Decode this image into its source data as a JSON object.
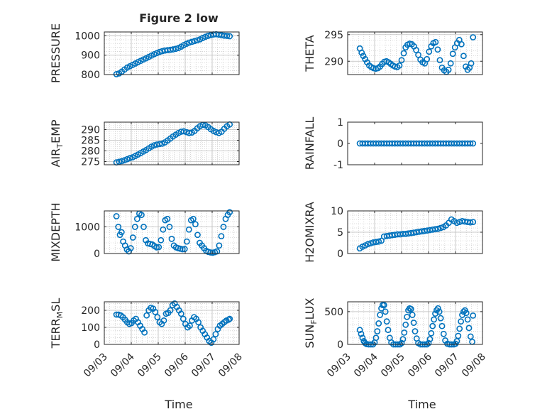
{
  "figure": {
    "title": "Figure 2 low"
  },
  "colors": {
    "marker": "#0072bd",
    "grid": "#bdbdbd",
    "axis": "#262626"
  },
  "x_tick_labels": [
    "09/03",
    "09/04",
    "09/05",
    "09/06",
    "09/07",
    "09/08"
  ],
  "chart_data": [
    {
      "type": "scatter",
      "col": 0,
      "row": 0,
      "ylabel": "PRESSURE",
      "ylabel_sub": null,
      "xlim": [
        3.0,
        8.0
      ],
      "ylim": [
        800,
        1020
      ],
      "yticks": [
        800,
        900,
        1000
      ],
      "grid": true,
      "x": [
        3.45,
        3.55,
        3.65,
        3.75,
        3.85,
        3.95,
        4.05,
        4.15,
        4.25,
        4.35,
        4.45,
        4.55,
        4.65,
        4.75,
        4.85,
        4.95,
        5.05,
        5.15,
        5.25,
        5.35,
        5.45,
        5.55,
        5.65,
        5.75,
        5.85,
        5.95,
        6.05,
        6.15,
        6.25,
        6.35,
        6.45,
        6.55,
        6.65,
        6.75,
        6.85,
        6.95,
        7.05,
        7.15,
        7.25,
        7.35,
        7.45,
        7.55,
        7.65
      ],
      "y": [
        802,
        806,
        815,
        826,
        836,
        843,
        850,
        857,
        864,
        871,
        878,
        884,
        891,
        898,
        905,
        911,
        917,
        921,
        924,
        926,
        928,
        930,
        933,
        937,
        944,
        952,
        959,
        965,
        969,
        973,
        977,
        982,
        989,
        995,
        1000,
        1004,
        1007,
        1008,
        1006,
        1003,
        1001,
        1000,
        998
      ]
    },
    {
      "type": "scatter",
      "col": 1,
      "row": 0,
      "ylabel": "THETA",
      "ylabel_sub": null,
      "xlim": [
        3.0,
        8.0
      ],
      "ylim": [
        287.5,
        295.5
      ],
      "yticks": [
        290,
        295
      ],
      "grid": true,
      "x": [
        3.45,
        3.52,
        3.58,
        3.65,
        3.72,
        3.8,
        3.88,
        3.96,
        4.04,
        4.12,
        4.2,
        4.28,
        4.36,
        4.44,
        4.52,
        4.6,
        4.68,
        4.76,
        4.84,
        4.92,
        5.0,
        5.08,
        5.15,
        5.22,
        5.3,
        5.38,
        5.46,
        5.54,
        5.62,
        5.7,
        5.78,
        5.86,
        5.94,
        6.02,
        6.1,
        6.18,
        6.26,
        6.34,
        6.42,
        6.5,
        6.58,
        6.66,
        6.74,
        6.82,
        6.9,
        6.98,
        7.06,
        7.14,
        7.22,
        7.3,
        7.38,
        7.45,
        7.52,
        7.58,
        7.65
      ],
      "y": [
        292.4,
        291.6,
        291.0,
        290.4,
        289.8,
        289.2,
        288.9,
        288.7,
        288.6,
        288.7,
        289.0,
        289.5,
        289.9,
        290.0,
        289.8,
        289.5,
        289.2,
        289.0,
        288.9,
        289.2,
        290.2,
        291.5,
        292.6,
        293.1,
        293.3,
        293.2,
        292.8,
        292.1,
        291.2,
        290.3,
        289.8,
        289.6,
        290.4,
        291.8,
        292.8,
        293.4,
        293.6,
        292.2,
        290.2,
        288.8,
        288.3,
        288.0,
        288.4,
        289.6,
        291.4,
        292.6,
        293.4,
        294.0,
        293.2,
        291.0,
        289.0,
        288.4,
        288.8,
        289.6,
        294.5
      ]
    },
    {
      "type": "scatter",
      "col": 0,
      "row": 1,
      "ylabel": "AIR",
      "ylabel_sub": "T",
      "ylabel_tail": "EMP",
      "xlim": [
        3.0,
        8.0
      ],
      "ylim": [
        273.5,
        293.5
      ],
      "yticks": [
        275,
        280,
        285,
        290
      ],
      "grid": true,
      "x": [
        3.45,
        3.55,
        3.65,
        3.75,
        3.85,
        3.95,
        4.05,
        4.15,
        4.25,
        4.35,
        4.45,
        4.55,
        4.65,
        4.75,
        4.85,
        4.95,
        5.05,
        5.15,
        5.25,
        5.35,
        5.45,
        5.55,
        5.65,
        5.75,
        5.85,
        5.95,
        6.05,
        6.15,
        6.25,
        6.35,
        6.45,
        6.55,
        6.65,
        6.75,
        6.85,
        6.95,
        7.05,
        7.15,
        7.25,
        7.35,
        7.45,
        7.55,
        7.65
      ],
      "y": [
        274.6,
        274.9,
        275.2,
        275.6,
        276.1,
        276.6,
        277.0,
        277.6,
        278.3,
        279.0,
        279.7,
        280.4,
        281.2,
        282.0,
        282.6,
        283.0,
        283.2,
        283.4,
        284.0,
        284.9,
        285.8,
        286.8,
        287.6,
        288.4,
        289.0,
        289.2,
        288.8,
        288.4,
        288.6,
        289.4,
        290.6,
        291.6,
        292.2,
        292.0,
        291.2,
        290.2,
        289.4,
        288.8,
        288.4,
        289.0,
        290.4,
        291.6,
        292.4
      ]
    },
    {
      "type": "scatter",
      "col": 1,
      "row": 1,
      "ylabel": "RAINFALL",
      "ylabel_sub": null,
      "xlim": [
        3.0,
        8.0
      ],
      "ylim": [
        -1,
        1
      ],
      "yticks": [
        -1,
        0,
        1
      ],
      "grid": false,
      "x": [
        3.45,
        3.55,
        3.65,
        3.75,
        3.85,
        3.95,
        4.05,
        4.15,
        4.25,
        4.35,
        4.45,
        4.55,
        4.65,
        4.75,
        4.85,
        4.95,
        5.05,
        5.15,
        5.25,
        5.35,
        5.45,
        5.55,
        5.65,
        5.75,
        5.85,
        5.95,
        6.05,
        6.15,
        6.25,
        6.35,
        6.45,
        6.55,
        6.65,
        6.75,
        6.85,
        6.95,
        7.05,
        7.15,
        7.25,
        7.35,
        7.45,
        7.55,
        7.65
      ],
      "y": [
        0,
        0,
        0,
        0,
        0,
        0,
        0,
        0,
        0,
        0,
        0,
        0,
        0,
        0,
        0,
        0,
        0,
        0,
        0,
        0,
        0,
        0,
        0,
        0,
        0,
        0,
        0,
        0,
        0,
        0,
        0,
        0,
        0,
        0,
        0,
        0,
        0,
        0,
        0,
        0,
        0,
        0,
        0
      ]
    },
    {
      "type": "scatter",
      "col": 0,
      "row": 2,
      "ylabel": "MIXDEPTH",
      "ylabel_sub": null,
      "xlim": [
        3.0,
        8.0
      ],
      "ylim": [
        0,
        1600
      ],
      "yticks": [
        0,
        1000
      ],
      "grid": true,
      "x": [
        3.45,
        3.52,
        3.58,
        3.64,
        3.7,
        3.77,
        3.84,
        3.91,
        3.98,
        4.06,
        4.14,
        4.22,
        4.3,
        4.38,
        4.46,
        4.54,
        4.62,
        4.7,
        4.78,
        4.86,
        4.94,
        5.02,
        5.1,
        5.18,
        5.26,
        5.34,
        5.42,
        5.5,
        5.58,
        5.66,
        5.74,
        5.82,
        5.9,
        5.98,
        6.06,
        6.14,
        6.22,
        6.3,
        6.38,
        6.46,
        6.54,
        6.62,
        6.7,
        6.78,
        6.86,
        6.94,
        7.02,
        7.1,
        7.18,
        7.26,
        7.34,
        7.42,
        7.5,
        7.58,
        7.65
      ],
      "y": [
        1400,
        1000,
        700,
        800,
        450,
        300,
        150,
        80,
        200,
        600,
        1000,
        1300,
        1500,
        1450,
        1000,
        500,
        380,
        360,
        340,
        280,
        230,
        240,
        500,
        900,
        1250,
        1300,
        1000,
        550,
        300,
        230,
        200,
        180,
        160,
        170,
        450,
        900,
        1250,
        1300,
        1100,
        700,
        400,
        300,
        200,
        100,
        60,
        40,
        30,
        50,
        80,
        300,
        650,
        1000,
        1300,
        1450,
        1550
      ]
    },
    {
      "type": "scatter",
      "col": 1,
      "row": 2,
      "ylabel": "H2OMIXRA",
      "ylabel_sub": null,
      "xlim": [
        3.0,
        8.0
      ],
      "ylim": [
        0,
        10
      ],
      "yticks": [
        0,
        5,
        10
      ],
      "grid": true,
      "x": [
        3.45,
        3.55,
        3.65,
        3.75,
        3.85,
        3.95,
        4.05,
        4.15,
        4.25,
        4.35,
        4.45,
        4.55,
        4.65,
        4.75,
        4.85,
        4.95,
        5.05,
        5.15,
        5.25,
        5.35,
        5.45,
        5.55,
        5.65,
        5.75,
        5.85,
        5.95,
        6.05,
        6.15,
        6.25,
        6.35,
        6.45,
        6.55,
        6.65,
        6.75,
        6.85,
        6.95,
        7.05,
        7.15,
        7.25,
        7.35,
        7.45,
        7.55,
        7.65
      ],
      "y": [
        1.2,
        1.6,
        1.9,
        2.2,
        2.4,
        2.6,
        2.7,
        2.8,
        3.0,
        4.0,
        4.1,
        4.2,
        4.3,
        4.4,
        4.5,
        4.5,
        4.6,
        4.6,
        4.7,
        4.8,
        4.9,
        5.0,
        5.1,
        5.2,
        5.3,
        5.4,
        5.5,
        5.6,
        5.7,
        5.8,
        6.0,
        6.2,
        6.6,
        7.2,
        8.0,
        7.6,
        7.2,
        7.4,
        7.6,
        7.5,
        7.4,
        7.3,
        7.4
      ]
    },
    {
      "type": "scatter",
      "col": 0,
      "row": 3,
      "ylabel": "TERR",
      "ylabel_sub": "M",
      "ylabel_tail": "SL",
      "xlim": [
        3.0,
        8.0
      ],
      "ylim": [
        0,
        250
      ],
      "yticks": [
        0,
        100,
        200
      ],
      "grid": true,
      "x": [
        3.45,
        3.53,
        3.61,
        3.69,
        3.77,
        3.85,
        3.93,
        4.01,
        4.09,
        4.17,
        4.25,
        4.33,
        4.41,
        4.49,
        4.57,
        4.65,
        4.73,
        4.81,
        4.89,
        4.97,
        5.05,
        5.13,
        5.21,
        5.29,
        5.37,
        5.45,
        5.53,
        5.61,
        5.69,
        5.77,
        5.85,
        5.93,
        6.01,
        6.09,
        6.17,
        6.25,
        6.33,
        6.41,
        6.49,
        6.57,
        6.65,
        6.73,
        6.81,
        6.89,
        6.97,
        7.05,
        7.13,
        7.21,
        7.29,
        7.37,
        7.45,
        7.53,
        7.61,
        7.65
      ],
      "y": [
        175,
        175,
        170,
        160,
        145,
        130,
        120,
        125,
        140,
        150,
        130,
        110,
        90,
        70,
        170,
        200,
        215,
        210,
        190,
        160,
        130,
        120,
        140,
        180,
        185,
        200,
        230,
        240,
        220,
        200,
        180,
        150,
        120,
        100,
        110,
        140,
        160,
        150,
        130,
        100,
        80,
        60,
        40,
        20,
        10,
        30,
        60,
        90,
        110,
        120,
        130,
        140,
        145,
        150
      ]
    },
    {
      "type": "scatter",
      "col": 1,
      "row": 3,
      "ylabel": "SUN",
      "ylabel_sub": "F",
      "ylabel_tail": "LUX",
      "xlim": [
        3.0,
        8.0
      ],
      "ylim": [
        0,
        650
      ],
      "yticks": [
        0,
        500
      ],
      "grid": true,
      "x": [
        3.45,
        3.5,
        3.55,
        3.6,
        3.65,
        3.7,
        3.78,
        3.86,
        3.94,
        4.0,
        4.05,
        4.1,
        4.15,
        4.2,
        4.25,
        4.3,
        4.35,
        4.4,
        4.45,
        4.5,
        4.56,
        4.62,
        4.7,
        4.78,
        4.86,
        4.94,
        5.0,
        5.05,
        5.1,
        5.15,
        5.2,
        5.25,
        5.3,
        5.35,
        5.4,
        5.45,
        5.5,
        5.56,
        5.62,
        5.7,
        5.78,
        5.86,
        5.94,
        6.0,
        6.05,
        6.1,
        6.15,
        6.2,
        6.25,
        6.3,
        6.35,
        6.4,
        6.45,
        6.5,
        6.56,
        6.62,
        6.7,
        6.78,
        6.86,
        6.94,
        7.0,
        7.05,
        7.1,
        7.15,
        7.2,
        7.25,
        7.3,
        7.35,
        7.4,
        7.45,
        7.5,
        7.56,
        7.62,
        7.65
      ],
      "y": [
        220,
        160,
        100,
        50,
        20,
        5,
        0,
        0,
        0,
        30,
        100,
        200,
        320,
        450,
        550,
        600,
        600,
        500,
        350,
        220,
        100,
        30,
        0,
        0,
        0,
        0,
        20,
        80,
        180,
        300,
        420,
        520,
        550,
        540,
        450,
        330,
        200,
        90,
        20,
        0,
        0,
        0,
        0,
        20,
        80,
        170,
        280,
        380,
        470,
        520,
        550,
        500,
        400,
        280,
        160,
        60,
        10,
        0,
        0,
        0,
        10,
        50,
        130,
        240,
        350,
        450,
        500,
        520,
        480,
        380,
        250,
        120,
        40,
        440
      ]
    }
  ]
}
